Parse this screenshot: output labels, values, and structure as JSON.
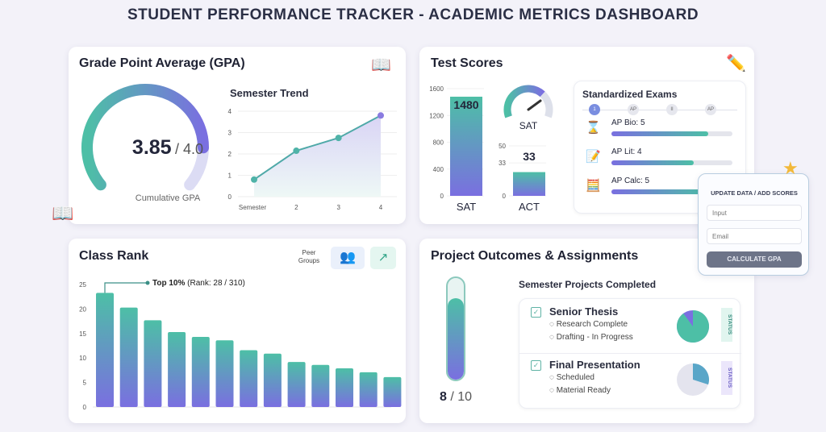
{
  "title": "STUDENT PERFORMANCE TRACKER - ACADEMIC METRICS DASHBOARD",
  "gpa": {
    "heading": "Grade Point Average (GPA)",
    "value": "3.85",
    "max": "/ 4.0",
    "fraction": 0.9625,
    "caption": "Cumulative GPA",
    "icon": "book-icon",
    "trend": {
      "title": "Semester Trend",
      "type": "line",
      "categories": [
        "Semester",
        "2",
        "3",
        "4"
      ],
      "values": [
        0.8,
        2.15,
        2.75,
        3.8
      ],
      "yticks": [
        "0",
        "1",
        "2",
        "3",
        "4"
      ],
      "ylim": [
        0,
        4
      ]
    }
  },
  "tests": {
    "heading": "Test Scores",
    "icon": "pencil-icon",
    "sat": {
      "label": "SAT",
      "value": "1480",
      "num": 1480,
      "yticks": [
        "0",
        "400",
        "800",
        "1200",
        "1600"
      ],
      "ylim": [
        0,
        1600
      ]
    },
    "act": {
      "label": "ACT",
      "value": "33",
      "num": 33,
      "yticks": [
        "0",
        "33",
        "50"
      ],
      "ylim": [
        0,
        50
      ]
    },
    "gauge_label": "SAT",
    "gauge_fraction": 0.925,
    "exams": {
      "title": "Standardized Exams",
      "steps": [
        "1",
        "AP",
        "II",
        "AP"
      ],
      "items": [
        {
          "label": "AP Bio: 5",
          "fill": 0.8,
          "icon": "hourglass-icon"
        },
        {
          "label": "AP Lit: 4",
          "fill": 0.68,
          "icon": "edit-document-icon"
        },
        {
          "label": "AP Calc: 5",
          "fill": 0.8,
          "icon": "calculator-icon"
        }
      ]
    }
  },
  "popup": {
    "title": "UPDATE DATA / ADD SCORES",
    "input_placeholder": "Input",
    "email_placeholder": "Email",
    "button": "CALCULATE GPA"
  },
  "rank": {
    "heading": "Class Rank",
    "peer_label": "Peer Groups",
    "annotation_bold": "Top 10%",
    "annotation": "(Rank: 28 / 310)",
    "chart_data": {
      "type": "bar",
      "values": [
        23.3,
        20.3,
        17.7,
        15.3,
        14.3,
        13.6,
        11.6,
        10.9,
        9.2,
        8.6,
        7.9,
        7.1,
        6.1,
        4.5
      ],
      "yticks": [
        "0",
        "5",
        "10",
        "15",
        "20",
        "25"
      ],
      "ylim": [
        0,
        25
      ]
    }
  },
  "projects": {
    "heading": "Project Outcomes & Assignments",
    "completed": "8",
    "total": "/ 10",
    "fraction": 0.8,
    "list_title": "Semester Projects Completed",
    "items": [
      {
        "title": "Senior Thesis",
        "lines": [
          "Research Complete",
          "Drafting - In Progress"
        ],
        "status": "STATUS",
        "pie_fraction": 0.9
      },
      {
        "title": "Final Presentation",
        "lines": [
          "Scheduled",
          "Material Ready"
        ],
        "status": "STATUS",
        "pie_fraction": 0.3
      }
    ]
  },
  "colors": {
    "teal": "#4dbfa6",
    "purple": "#7a6fe0",
    "accent_blue": "#5b8fe0"
  }
}
